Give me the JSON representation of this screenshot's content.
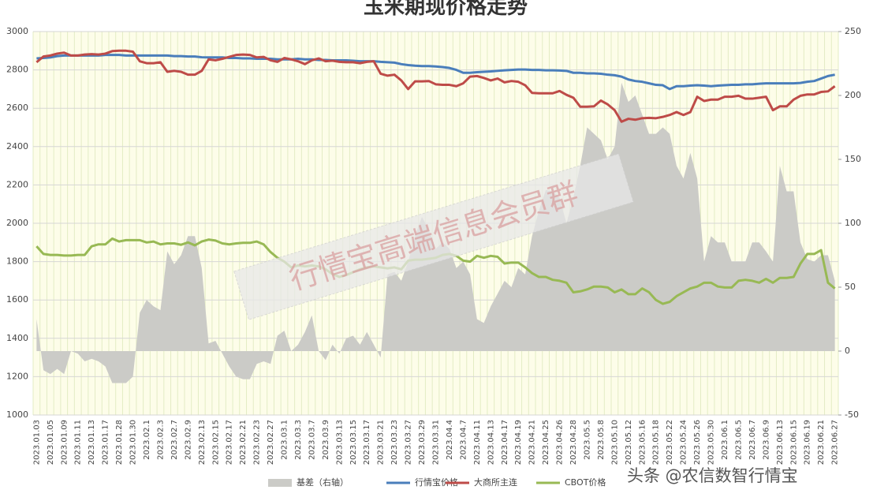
{
  "chart_data": {
    "type": "line",
    "title": "玉米期现价格走势",
    "watermark": "行情宝高端信息会员群",
    "credit": "头条 @农信数智行情宝",
    "categories": [
      "2023.01.03",
      null,
      "2023.01.05",
      null,
      "2023.01.09",
      null,
      "2023.01.11",
      null,
      "2023.01.13",
      null,
      "2023.01.17",
      null,
      "2023.01.28",
      null,
      "2023.01.30",
      null,
      "2023.02.1",
      null,
      "2023.02.3",
      null,
      "2023.02.7",
      null,
      "2023.02.9",
      null,
      "2023.02.13",
      null,
      "2023.02.15",
      null,
      "2023.02.17",
      null,
      "2023.02.21",
      null,
      "2023.02.23",
      null,
      "2023.02.27",
      null,
      "2023.03.1",
      null,
      "2023.03.3",
      null,
      "2023.03.7",
      null,
      "2023.03.9",
      null,
      "2023.03.13",
      null,
      "2023.03.15",
      null,
      "2023.03.17",
      null,
      "2023.03.21",
      null,
      "2023.03.23",
      null,
      "2023.03.27",
      null,
      "2023.03.29",
      null,
      "2023.03.31",
      null,
      "2023.04.4",
      null,
      "2023.04.7",
      null,
      "2023.04.11",
      null,
      "2023.04.13",
      null,
      "2023.04.17",
      null,
      "2023.04.19",
      null,
      "2023.04.21",
      null,
      "2023.04.25",
      null,
      "2023.04.26",
      null,
      "2023.04.28",
      null,
      "2023.05.5",
      null,
      "2023.05.8",
      null,
      "2023.05.10",
      null,
      "2023.05.12",
      null,
      "2023.05.16",
      null,
      "2023.05.18",
      null,
      "2023.05.22",
      null,
      "2023.05.24",
      null,
      "2023.05.26",
      null,
      "2023.05.30",
      null,
      "2023.06.1",
      null,
      "2023.06.5",
      null,
      "2023.06.7",
      null,
      "2023.06.9",
      null,
      "2023.06.13",
      null,
      "2023.06.15",
      null,
      "2023.06.19",
      null,
      "2023.06.21",
      null,
      "2023.06.27"
    ],
    "series": [
      {
        "name": "基差（右轴）",
        "type": "area",
        "axis": "y2",
        "color": "#cbcbc7",
        "values": [
          25,
          -15,
          -18,
          -14,
          -18,
          0,
          -2,
          -8,
          -6,
          -8,
          -12,
          -25,
          -25,
          -25,
          -20,
          30,
          40,
          35,
          32,
          78,
          68,
          75,
          90,
          90,
          65,
          6,
          8,
          -2,
          -12,
          -20,
          -22,
          -22,
          -10,
          -8,
          -10,
          12,
          16,
          0,
          5,
          15,
          28,
          0,
          -7,
          5,
          -2,
          10,
          12,
          5,
          15,
          5,
          -5,
          60,
          62,
          55,
          70,
          90,
          105,
          95,
          80,
          85,
          80,
          65,
          70,
          60,
          25,
          22,
          35,
          45,
          55,
          50,
          65,
          60,
          90,
          110,
          126,
          125,
          120,
          100,
          120,
          145,
          175,
          170,
          165,
          150,
          160,
          210,
          195,
          200,
          185,
          170,
          170,
          175,
          170,
          145,
          135,
          155,
          135,
          70,
          90,
          85,
          85,
          70,
          70,
          70,
          85,
          85,
          78,
          70,
          145,
          125,
          125,
          85,
          72,
          70,
          75,
          75,
          55
        ]
      },
      {
        "name": "行情宝价格",
        "type": "line",
        "color": "#4a7ebb",
        "values": [
          2860,
          2862,
          2865,
          2872,
          2875,
          2875,
          2875,
          2875,
          2875,
          2875,
          2878,
          2878,
          2878,
          2875,
          2875,
          2875,
          2875,
          2875,
          2875,
          2875,
          2872,
          2872,
          2870,
          2870,
          2866,
          2865,
          2865,
          2865,
          2862,
          2862,
          2860,
          2860,
          2858,
          2858,
          2858,
          2855,
          2855,
          2855,
          2858,
          2855,
          2855,
          2852,
          2852,
          2850,
          2850,
          2850,
          2848,
          2845,
          2845,
          2845,
          2842,
          2840,
          2838,
          2830,
          2825,
          2822,
          2820,
          2820,
          2818,
          2815,
          2810,
          2800,
          2785,
          2785,
          2788,
          2790,
          2792,
          2795,
          2798,
          2800,
          2802,
          2802,
          2800,
          2800,
          2798,
          2798,
          2797,
          2795,
          2785,
          2785,
          2782,
          2782,
          2780,
          2775,
          2772,
          2765,
          2750,
          2742,
          2738,
          2730,
          2722,
          2720,
          2700,
          2715,
          2715,
          2718,
          2720,
          2718,
          2715,
          2718,
          2720,
          2722,
          2722,
          2725,
          2725,
          2728,
          2730,
          2730,
          2730,
          2730,
          2730,
          2732,
          2738,
          2742,
          2755,
          2768,
          2775
        ]
      },
      {
        "name": "大商所主连",
        "type": "line",
        "color": "#be4b48",
        "values": [
          2840,
          2870,
          2875,
          2885,
          2890,
          2875,
          2875,
          2880,
          2882,
          2880,
          2885,
          2898,
          2900,
          2900,
          2895,
          2845,
          2835,
          2835,
          2840,
          2790,
          2795,
          2790,
          2775,
          2775,
          2795,
          2855,
          2850,
          2858,
          2868,
          2878,
          2880,
          2878,
          2865,
          2868,
          2850,
          2842,
          2862,
          2855,
          2845,
          2830,
          2850,
          2860,
          2845,
          2848,
          2842,
          2840,
          2840,
          2835,
          2842,
          2845,
          2780,
          2770,
          2775,
          2745,
          2700,
          2740,
          2740,
          2742,
          2725,
          2722,
          2722,
          2715,
          2730,
          2765,
          2768,
          2758,
          2745,
          2755,
          2735,
          2742,
          2738,
          2720,
          2680,
          2678,
          2678,
          2678,
          2690,
          2670,
          2655,
          2608,
          2608,
          2610,
          2640,
          2620,
          2590,
          2530,
          2545,
          2540,
          2548,
          2550,
          2548,
          2555,
          2565,
          2580,
          2565,
          2580,
          2660,
          2638,
          2645,
          2645,
          2660,
          2660,
          2665,
          2650,
          2650,
          2655,
          2660,
          2590,
          2610,
          2610,
          2645,
          2665,
          2672,
          2672,
          2685,
          2688,
          2715
        ]
      },
      {
        "name": "CBOT价格",
        "type": "line",
        "color": "#98b954",
        "values": [
          1880,
          1840,
          1835,
          1835,
          1832,
          1832,
          1835,
          1835,
          1880,
          1890,
          1890,
          1920,
          1905,
          1912,
          1912,
          1912,
          1900,
          1905,
          1890,
          1895,
          1895,
          1888,
          1900,
          1885,
          1905,
          1915,
          1910,
          1895,
          1890,
          1895,
          1898,
          1898,
          1905,
          1890,
          1850,
          1820,
          1800,
          1770,
          1780,
          1775,
          1780,
          1775,
          1760,
          1735,
          1720,
          1730,
          1745,
          1760,
          1770,
          1775,
          1770,
          1765,
          1770,
          1760,
          1805,
          1810,
          1810,
          1815,
          1820,
          1835,
          1840,
          1830,
          1805,
          1800,
          1830,
          1820,
          1830,
          1825,
          1790,
          1795,
          1795,
          1770,
          1740,
          1720,
          1720,
          1705,
          1700,
          1690,
          1640,
          1645,
          1655,
          1670,
          1670,
          1665,
          1640,
          1655,
          1630,
          1630,
          1660,
          1640,
          1600,
          1580,
          1590,
          1620,
          1640,
          1660,
          1670,
          1690,
          1690,
          1670,
          1665,
          1665,
          1700,
          1705,
          1700,
          1690,
          1710,
          1690,
          1715,
          1715,
          1720,
          1790,
          1840,
          1840,
          1860,
          1690,
          1660
        ]
      }
    ],
    "ylim": [
      1000,
      3000
    ],
    "yticks": [
      1000,
      1200,
      1400,
      1600,
      1800,
      2000,
      2200,
      2400,
      2600,
      2800,
      3000
    ],
    "y2lim": [
      -50,
      250
    ],
    "y2ticks": [
      -50,
      0,
      50,
      100,
      150,
      200,
      250
    ],
    "grid": true,
    "legend": "bottom"
  }
}
